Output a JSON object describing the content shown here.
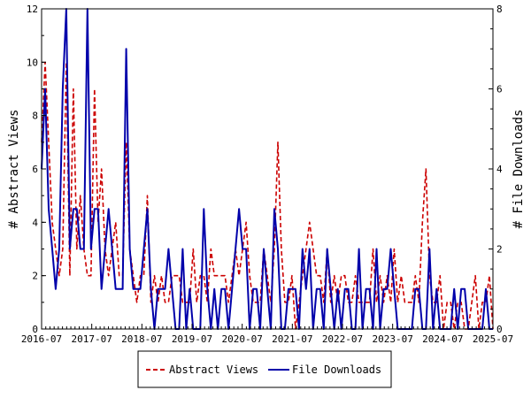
{
  "chart_data": {
    "type": "line",
    "title": "",
    "ylabel_left": "# Abstract Views",
    "ylabel_right": "# File Downloads",
    "ylim_left": [
      0,
      12
    ],
    "ylim_right": [
      0,
      8
    ],
    "yticks_left": [
      "0",
      "2",
      "4",
      "6",
      "8",
      "10",
      "12"
    ],
    "yticks_right": [
      "0",
      "2",
      "4",
      "6",
      "8"
    ],
    "x_start": "2016-07",
    "x_end": "2025-07",
    "xticks": [
      "2016-07",
      "2017-07",
      "2018-07",
      "2019-07",
      "2020-07",
      "2021-07",
      "2022-07",
      "2023-07",
      "2024-07",
      "2025-07"
    ],
    "legend_position": "bottom-center",
    "grid": false,
    "series": [
      {
        "name": "Abstract Views",
        "axis": "left",
        "color": "#cc0000",
        "style": "dashed",
        "values": [
          7,
          10,
          7,
          4,
          3,
          2,
          3,
          10,
          2,
          9,
          3,
          5,
          3,
          2,
          2,
          9,
          4,
          6,
          3,
          2,
          3,
          4,
          2,
          2,
          7,
          3,
          2,
          1,
          2,
          2,
          5,
          1,
          2,
          1,
          2,
          1,
          1,
          2,
          2,
          2,
          1,
          1,
          1,
          3,
          1,
          2,
          2,
          1,
          3,
          2,
          2,
          2,
          2,
          1,
          2,
          3,
          2,
          3,
          4,
          2,
          1,
          1,
          1,
          3,
          2,
          1,
          3,
          7,
          3,
          1,
          1,
          2,
          0,
          1,
          2,
          3,
          4,
          3,
          2,
          2,
          1,
          3,
          1,
          2,
          1,
          2,
          2,
          1,
          1,
          2,
          1,
          1,
          1,
          1,
          3,
          1,
          2,
          1,
          2,
          1,
          3,
          1,
          2,
          1,
          1,
          1,
          2,
          1,
          4,
          6,
          2,
          1,
          1,
          2,
          0,
          1,
          1,
          0,
          1,
          1,
          0,
          0,
          1,
          2,
          0,
          1,
          1,
          2,
          0
        ]
      },
      {
        "name": "File Downloads",
        "axis": "right",
        "color": "#0000aa",
        "style": "solid",
        "values": [
          4,
          6,
          3,
          2,
          1,
          2,
          6,
          8,
          2,
          3,
          3,
          2,
          2,
          8,
          2,
          3,
          3,
          1,
          2,
          3,
          2,
          1,
          1,
          1,
          7,
          2,
          1,
          1,
          1,
          2,
          3,
          1,
          0,
          1,
          1,
          1,
          2,
          1,
          0,
          0,
          2,
          0,
          1,
          0,
          0,
          0,
          3,
          1,
          0,
          1,
          0,
          1,
          1,
          0,
          1,
          2,
          3,
          2,
          2,
          0,
          1,
          1,
          0,
          2,
          1,
          0,
          3,
          2,
          0,
          0,
          1,
          1,
          1,
          0,
          2,
          1,
          2,
          0,
          1,
          1,
          0,
          2,
          1,
          0,
          1,
          0,
          1,
          1,
          0,
          0,
          2,
          0,
          1,
          1,
          0,
          2,
          0,
          1,
          1,
          2,
          1,
          0,
          0,
          0,
          0,
          0,
          1,
          1,
          0,
          0,
          2,
          0,
          1,
          0,
          0,
          0,
          0,
          1,
          0,
          1,
          1,
          0,
          0,
          0,
          0,
          0,
          1,
          0,
          0
        ]
      }
    ]
  }
}
